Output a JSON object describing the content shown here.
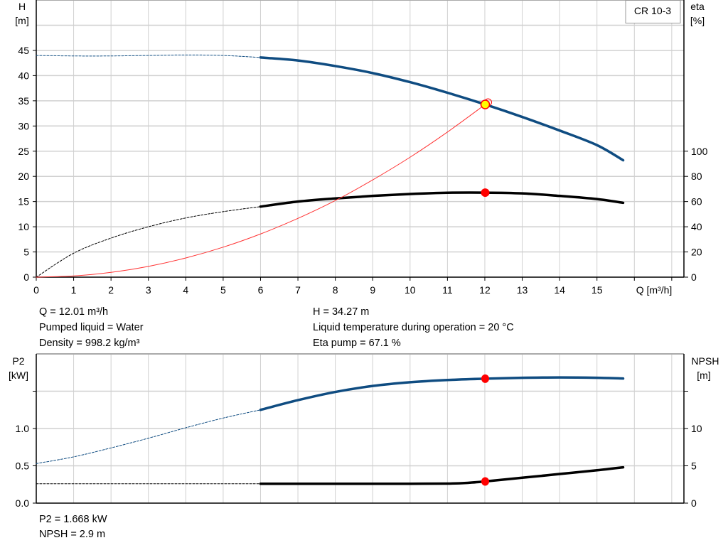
{
  "legend": {
    "label": "CR 10-3"
  },
  "info_top": {
    "left": [
      "Q = 12.01 m³/h",
      "Pumped liquid = Water",
      "Density = 998.2 kg/m³"
    ],
    "right": [
      "H = 34.27 m",
      "Liquid temperature during operation = 20 °C",
      "Eta pump = 67.1 %"
    ]
  },
  "info_bottom": [
    "P2 = 1.668 kW",
    "NPSH = 2.9 m"
  ],
  "colors": {
    "head": "#0f4c81",
    "eta": "#000000",
    "system": "#ff3333",
    "point": "#ff0000",
    "point_fill": "#ffff00",
    "grid": "#d0d0d0"
  },
  "chart_data": [
    {
      "type": "line",
      "title": "",
      "xlabel": "Q [m³/h]",
      "ylabel": "H [m]",
      "y2label": "eta [%]",
      "xlim": [
        0,
        17
      ],
      "ylim": [
        0,
        50
      ],
      "y2lim": [
        0,
        200
      ],
      "xticks": [
        "0",
        "1",
        "2",
        "3",
        "4",
        "5",
        "6",
        "7",
        "8",
        "9",
        "10",
        "11",
        "12",
        "13",
        "14",
        "15"
      ],
      "yticks": [
        "0",
        "5",
        "10",
        "15",
        "20",
        "25",
        "30",
        "35",
        "40",
        "45"
      ],
      "y2ticks": [
        "0",
        "20",
        "40",
        "60",
        "80",
        "100"
      ],
      "grid": true,
      "series": [
        {
          "id": "head",
          "axis": "left",
          "dashed": {
            "x": [
              0,
              1,
              2,
              3,
              4,
              5,
              6
            ],
            "y": [
              44.0,
              43.9,
              43.9,
              44.0,
              44.1,
              44.0,
              43.6
            ]
          },
          "solid": {
            "x": [
              6,
              7,
              8,
              9,
              10,
              11,
              12,
              13,
              14,
              15,
              15.7
            ],
            "y": [
              43.6,
              43.0,
              41.9,
              40.5,
              38.7,
              36.6,
              34.3,
              31.8,
              29.1,
              26.2,
              23.2
            ]
          }
        },
        {
          "id": "eta",
          "axis": "right",
          "dashed": {
            "x": [
              0,
              1,
              2,
              3,
              4,
              5,
              6
            ],
            "y": [
              0,
              19,
              31,
              40,
              47,
              52,
              56
            ]
          },
          "solid": {
            "x": [
              6,
              7,
              8,
              9,
              10,
              11,
              12,
              13,
              14,
              15,
              15.7
            ],
            "y": [
              56,
              60,
              62.5,
              64.5,
              66,
              67,
              67.1,
              66.5,
              64.5,
              62,
              59
            ]
          }
        },
        {
          "id": "system",
          "axis": "left",
          "solid": {
            "x": [
              0,
              1,
              2,
              3,
              4,
              5,
              6,
              7,
              8,
              9,
              10,
              11,
              12.01
            ],
            "y": [
              0,
              0.24,
              0.95,
              2.14,
              3.81,
              5.95,
              8.57,
              11.66,
              15.2,
              19.3,
              23.8,
              28.8,
              34.27
            ]
          }
        }
      ],
      "operating_point": {
        "q": 12.01,
        "h": 34.27,
        "eta": 67.1
      }
    },
    {
      "type": "line",
      "title": "",
      "ylabel": "P2 [kW]",
      "y2label": "NPSH [m]",
      "xlim": [
        0,
        17
      ],
      "ylim": [
        0,
        2.0
      ],
      "y2lim": [
        0,
        20
      ],
      "yticks": [
        "0.0",
        "0.5",
        "1.0"
      ],
      "y2ticks": [
        "0",
        "5",
        "10"
      ],
      "grid": true,
      "series": [
        {
          "id": "p2",
          "axis": "left",
          "dashed": {
            "x": [
              0,
              1,
              2,
              3,
              4,
              5,
              6
            ],
            "y": [
              0.53,
              0.62,
              0.74,
              0.87,
              1.01,
              1.14,
              1.25
            ]
          },
          "solid": {
            "x": [
              6,
              7,
              8,
              9,
              10,
              11,
              12,
              13,
              14,
              15,
              15.7
            ],
            "y": [
              1.25,
              1.38,
              1.49,
              1.57,
              1.62,
              1.65,
              1.668,
              1.68,
              1.685,
              1.68,
              1.67
            ]
          }
        },
        {
          "id": "npsh",
          "axis": "right",
          "dashed": {
            "x": [
              0,
              1,
              2,
              3,
              4,
              5,
              6
            ],
            "y": [
              2.6,
              2.6,
              2.6,
              2.6,
              2.6,
              2.6,
              2.6
            ]
          },
          "solid": {
            "x": [
              6,
              7,
              8,
              9,
              10,
              11,
              11.5,
              12,
              13,
              14,
              15,
              15.7
            ],
            "y": [
              2.6,
              2.6,
              2.6,
              2.6,
              2.6,
              2.62,
              2.7,
              2.9,
              3.4,
              3.9,
              4.4,
              4.8
            ]
          }
        }
      ],
      "operating_point": {
        "q": 12.01,
        "p2": 1.668,
        "npsh": 2.9
      }
    }
  ]
}
